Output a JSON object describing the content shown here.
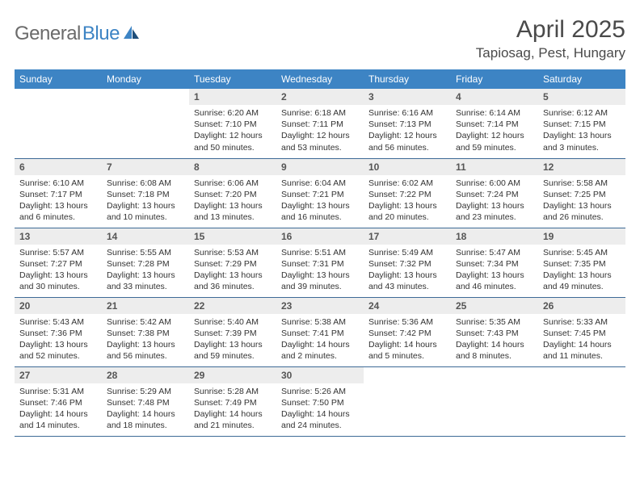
{
  "logo": {
    "text1": "General",
    "text2": "Blue"
  },
  "title": "April 2025",
  "location": "Tapiosag, Pest, Hungary",
  "colors": {
    "header_bg": "#3d84c4",
    "header_text": "#ffffff",
    "daynum_bg": "#ededed",
    "daynum_text": "#555555",
    "border": "#3d6a96",
    "logo_gray": "#6b6b6b",
    "logo_blue": "#3d84c4"
  },
  "dayNames": [
    "Sunday",
    "Monday",
    "Tuesday",
    "Wednesday",
    "Thursday",
    "Friday",
    "Saturday"
  ],
  "weeks": [
    [
      null,
      null,
      {
        "n": "1",
        "sr": "Sunrise: 6:20 AM",
        "ss": "Sunset: 7:10 PM",
        "dl": "Daylight: 12 hours and 50 minutes."
      },
      {
        "n": "2",
        "sr": "Sunrise: 6:18 AM",
        "ss": "Sunset: 7:11 PM",
        "dl": "Daylight: 12 hours and 53 minutes."
      },
      {
        "n": "3",
        "sr": "Sunrise: 6:16 AM",
        "ss": "Sunset: 7:13 PM",
        "dl": "Daylight: 12 hours and 56 minutes."
      },
      {
        "n": "4",
        "sr": "Sunrise: 6:14 AM",
        "ss": "Sunset: 7:14 PM",
        "dl": "Daylight: 12 hours and 59 minutes."
      },
      {
        "n": "5",
        "sr": "Sunrise: 6:12 AM",
        "ss": "Sunset: 7:15 PM",
        "dl": "Daylight: 13 hours and 3 minutes."
      }
    ],
    [
      {
        "n": "6",
        "sr": "Sunrise: 6:10 AM",
        "ss": "Sunset: 7:17 PM",
        "dl": "Daylight: 13 hours and 6 minutes."
      },
      {
        "n": "7",
        "sr": "Sunrise: 6:08 AM",
        "ss": "Sunset: 7:18 PM",
        "dl": "Daylight: 13 hours and 10 minutes."
      },
      {
        "n": "8",
        "sr": "Sunrise: 6:06 AM",
        "ss": "Sunset: 7:20 PM",
        "dl": "Daylight: 13 hours and 13 minutes."
      },
      {
        "n": "9",
        "sr": "Sunrise: 6:04 AM",
        "ss": "Sunset: 7:21 PM",
        "dl": "Daylight: 13 hours and 16 minutes."
      },
      {
        "n": "10",
        "sr": "Sunrise: 6:02 AM",
        "ss": "Sunset: 7:22 PM",
        "dl": "Daylight: 13 hours and 20 minutes."
      },
      {
        "n": "11",
        "sr": "Sunrise: 6:00 AM",
        "ss": "Sunset: 7:24 PM",
        "dl": "Daylight: 13 hours and 23 minutes."
      },
      {
        "n": "12",
        "sr": "Sunrise: 5:58 AM",
        "ss": "Sunset: 7:25 PM",
        "dl": "Daylight: 13 hours and 26 minutes."
      }
    ],
    [
      {
        "n": "13",
        "sr": "Sunrise: 5:57 AM",
        "ss": "Sunset: 7:27 PM",
        "dl": "Daylight: 13 hours and 30 minutes."
      },
      {
        "n": "14",
        "sr": "Sunrise: 5:55 AM",
        "ss": "Sunset: 7:28 PM",
        "dl": "Daylight: 13 hours and 33 minutes."
      },
      {
        "n": "15",
        "sr": "Sunrise: 5:53 AM",
        "ss": "Sunset: 7:29 PM",
        "dl": "Daylight: 13 hours and 36 minutes."
      },
      {
        "n": "16",
        "sr": "Sunrise: 5:51 AM",
        "ss": "Sunset: 7:31 PM",
        "dl": "Daylight: 13 hours and 39 minutes."
      },
      {
        "n": "17",
        "sr": "Sunrise: 5:49 AM",
        "ss": "Sunset: 7:32 PM",
        "dl": "Daylight: 13 hours and 43 minutes."
      },
      {
        "n": "18",
        "sr": "Sunrise: 5:47 AM",
        "ss": "Sunset: 7:34 PM",
        "dl": "Daylight: 13 hours and 46 minutes."
      },
      {
        "n": "19",
        "sr": "Sunrise: 5:45 AM",
        "ss": "Sunset: 7:35 PM",
        "dl": "Daylight: 13 hours and 49 minutes."
      }
    ],
    [
      {
        "n": "20",
        "sr": "Sunrise: 5:43 AM",
        "ss": "Sunset: 7:36 PM",
        "dl": "Daylight: 13 hours and 52 minutes."
      },
      {
        "n": "21",
        "sr": "Sunrise: 5:42 AM",
        "ss": "Sunset: 7:38 PM",
        "dl": "Daylight: 13 hours and 56 minutes."
      },
      {
        "n": "22",
        "sr": "Sunrise: 5:40 AM",
        "ss": "Sunset: 7:39 PM",
        "dl": "Daylight: 13 hours and 59 minutes."
      },
      {
        "n": "23",
        "sr": "Sunrise: 5:38 AM",
        "ss": "Sunset: 7:41 PM",
        "dl": "Daylight: 14 hours and 2 minutes."
      },
      {
        "n": "24",
        "sr": "Sunrise: 5:36 AM",
        "ss": "Sunset: 7:42 PM",
        "dl": "Daylight: 14 hours and 5 minutes."
      },
      {
        "n": "25",
        "sr": "Sunrise: 5:35 AM",
        "ss": "Sunset: 7:43 PM",
        "dl": "Daylight: 14 hours and 8 minutes."
      },
      {
        "n": "26",
        "sr": "Sunrise: 5:33 AM",
        "ss": "Sunset: 7:45 PM",
        "dl": "Daylight: 14 hours and 11 minutes."
      }
    ],
    [
      {
        "n": "27",
        "sr": "Sunrise: 5:31 AM",
        "ss": "Sunset: 7:46 PM",
        "dl": "Daylight: 14 hours and 14 minutes."
      },
      {
        "n": "28",
        "sr": "Sunrise: 5:29 AM",
        "ss": "Sunset: 7:48 PM",
        "dl": "Daylight: 14 hours and 18 minutes."
      },
      {
        "n": "29",
        "sr": "Sunrise: 5:28 AM",
        "ss": "Sunset: 7:49 PM",
        "dl": "Daylight: 14 hours and 21 minutes."
      },
      {
        "n": "30",
        "sr": "Sunrise: 5:26 AM",
        "ss": "Sunset: 7:50 PM",
        "dl": "Daylight: 14 hours and 24 minutes."
      },
      null,
      null,
      null
    ]
  ]
}
